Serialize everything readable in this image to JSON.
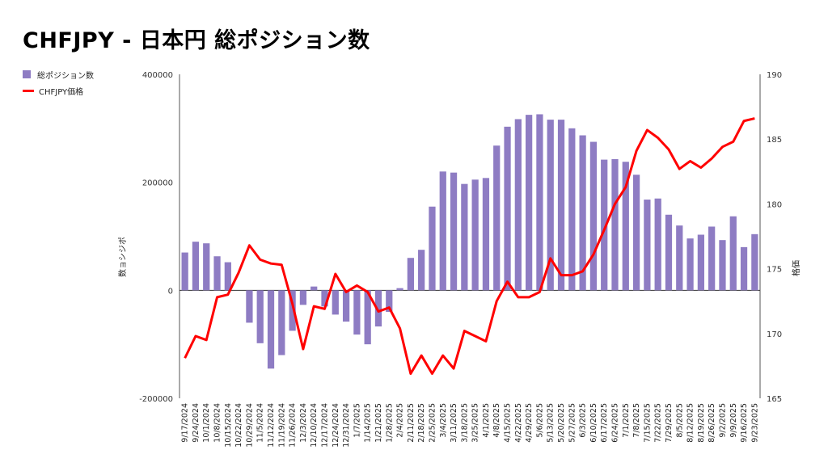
{
  "title": "CHFJPY - 日本円 総ポジション数",
  "legend": [
    {
      "label": "総ポジション数",
      "color": "#8e7cc3",
      "kind": "bar"
    },
    {
      "label": "CHFJPY価格",
      "color": "#ff0000",
      "kind": "line"
    }
  ],
  "chart_data": {
    "type": "bar",
    "title": "CHFJPY - 日本円 総ポジション数",
    "categories": [
      "9/17/2024",
      "9/24/2024",
      "10/1/2024",
      "10/8/2024",
      "10/15/2024",
      "10/22/2024",
      "10/29/2024",
      "11/5/2024",
      "11/12/2024",
      "11/19/2024",
      "11/26/2024",
      "12/3/2024",
      "12/10/2024",
      "12/17/2024",
      "12/24/2024",
      "12/31/2024",
      "1/7/2025",
      "1/14/2025",
      "1/21/2025",
      "1/28/2025",
      "2/4/2025",
      "2/11/2025",
      "2/18/2025",
      "2/25/2025",
      "3/4/2025",
      "3/11/2025",
      "3/18/2025",
      "3/25/2025",
      "4/1/2025",
      "4/8/2025",
      "4/15/2025",
      "4/22/2025",
      "4/29/2025",
      "5/6/2025",
      "5/13/2025",
      "5/20/2025",
      "5/27/2025",
      "6/3/2025",
      "6/10/2025",
      "6/17/2025",
      "6/24/2025",
      "7/1/2025",
      "7/8/2025",
      "7/15/2025",
      "7/22/2025",
      "7/29/2025",
      "8/5/2025",
      "8/12/2025",
      "8/19/2025",
      "8/26/2025",
      "9/2/2025",
      "9/9/2025",
      "9/16/2025",
      "9/23/2025"
    ],
    "series": [
      {
        "name": "総ポジション数",
        "type": "bar",
        "axis": "left",
        "color": "#8e7cc3",
        "values": [
          70000,
          90000,
          87000,
          63000,
          52000,
          0,
          -60000,
          -98000,
          -145000,
          -120000,
          -75000,
          -27000,
          7000,
          -30000,
          -45000,
          -58000,
          -82000,
          -100000,
          -67000,
          -40000,
          4000,
          60000,
          75000,
          155000,
          220000,
          218000,
          197000,
          205000,
          208000,
          268000,
          303000,
          317000,
          325000,
          326000,
          316000,
          316000,
          300000,
          287000,
          275000,
          242000,
          243000,
          238000,
          214000,
          168000,
          170000,
          140000,
          120000,
          96000,
          103000,
          118000,
          93000,
          137000,
          80000,
          104000
        ]
      },
      {
        "name": "CHFJPY価格",
        "type": "line",
        "axis": "right",
        "color": "#ff0000",
        "values": [
          168.1,
          169.8,
          169.5,
          172.8,
          173.0,
          174.7,
          176.8,
          175.7,
          175.4,
          175.3,
          172.3,
          168.8,
          172.1,
          171.9,
          174.6,
          173.2,
          173.7,
          173.2,
          171.7,
          172.0,
          170.4,
          166.9,
          168.3,
          166.9,
          168.3,
          167.3,
          170.2,
          169.8,
          169.4,
          172.5,
          174.0,
          172.8,
          172.8,
          173.2,
          175.8,
          174.5,
          174.5,
          174.8,
          176.1,
          178.0,
          180.0,
          181.3,
          184.1,
          185.7,
          185.1,
          184.2,
          182.7,
          183.3,
          182.8,
          183.5,
          184.4,
          184.8,
          186.4,
          186.6
        ]
      }
    ],
    "y_left": {
      "label": "数ョシジポ",
      "ticks": [
        "400000",
        "200000",
        "0",
        "-200000"
      ],
      "min": -200000,
      "max": 400000
    },
    "y_right": {
      "label": "格価",
      "ticks": [
        "190",
        "185",
        "180",
        "175",
        "170",
        "165"
      ],
      "min": 165,
      "max": 190
    },
    "grid": false,
    "legend_position": "top-left"
  }
}
